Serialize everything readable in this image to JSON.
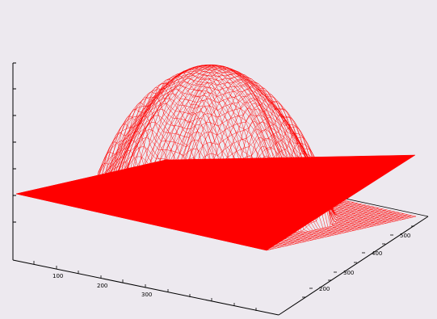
{
  "chart_data": {
    "type": "surface",
    "title": "",
    "xlabel": "",
    "ylabel": "",
    "zlabel": "",
    "x_ticks": [
      "100",
      "200",
      "300"
    ],
    "y_ticks": [
      "200",
      "300",
      "400",
      "500"
    ],
    "x_range": [
      0,
      500
    ],
    "y_range": [
      100,
      550
    ],
    "z_range": [
      0,
      1
    ],
    "surface": {
      "description_free": true,
      "baseline": 0,
      "dome_peak": 1,
      "color": "#ff0000"
    },
    "grid": false,
    "legend": "none"
  },
  "colors": {
    "background": "#ede9ef",
    "series": "#ff0000",
    "axis": "#000000"
  }
}
